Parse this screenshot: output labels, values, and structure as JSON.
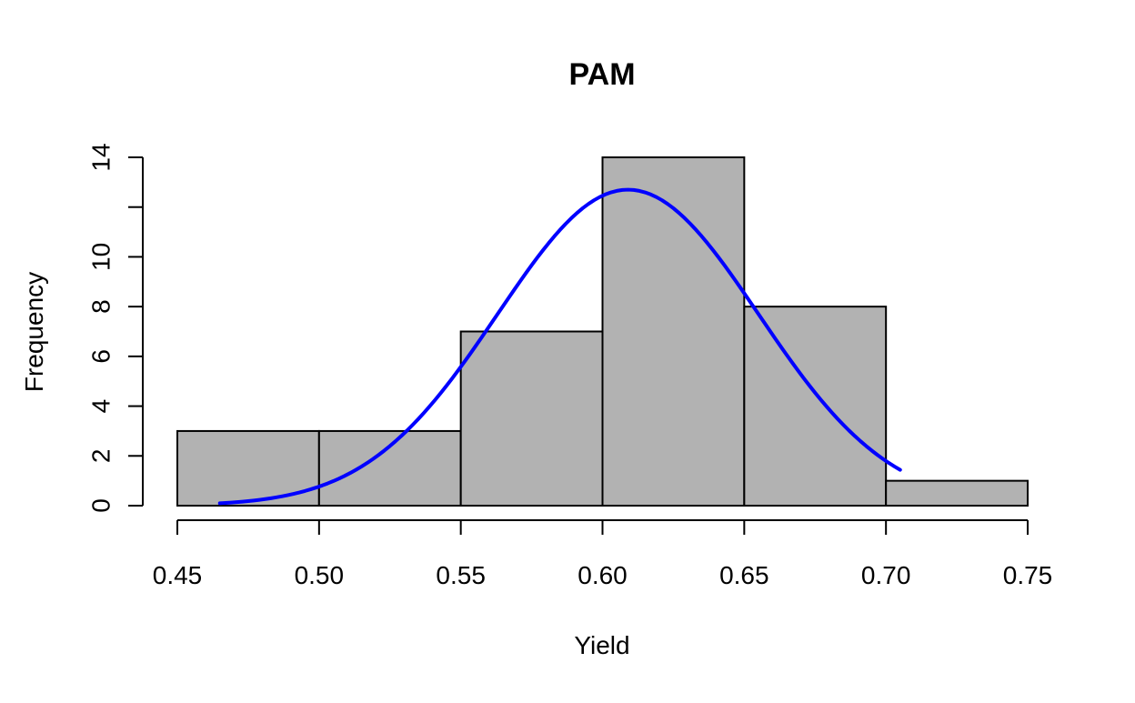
{
  "chart_data": {
    "type": "bar",
    "subtype": "histogram",
    "title": "PAM",
    "xlabel": "Yield",
    "ylabel": "Frequency",
    "bins": [
      {
        "x0": 0.45,
        "x1": 0.5,
        "count": 3
      },
      {
        "x0": 0.5,
        "x1": 0.55,
        "count": 3
      },
      {
        "x0": 0.55,
        "x1": 0.6,
        "count": 7
      },
      {
        "x0": 0.6,
        "x1": 0.65,
        "count": 14
      },
      {
        "x0": 0.65,
        "x1": 0.7,
        "count": 8
      },
      {
        "x0": 0.7,
        "x1": 0.75,
        "count": 1
      }
    ],
    "xlim": [
      0.45,
      0.75
    ],
    "ylim": [
      0,
      14
    ],
    "x_ticks": [
      0.45,
      0.5,
      0.55,
      0.6,
      0.65,
      0.7,
      0.75
    ],
    "x_tick_labels": [
      "0.45",
      "0.50",
      "0.55",
      "0.60",
      "0.65",
      "0.70",
      "0.75"
    ],
    "y_ticks": [
      0,
      2,
      4,
      6,
      8,
      10,
      12,
      14
    ],
    "y_tick_labels": [
      "0",
      "2",
      "4",
      "6",
      "8",
      "10",
      "",
      "14"
    ],
    "density_curve": {
      "type": "normal",
      "mean": 0.609,
      "sd": 0.046,
      "peak_count": 12.7,
      "x_range": [
        0.465,
        0.705
      ]
    },
    "colors": {
      "bar_fill": "#b2b2b2",
      "bar_stroke": "#000000",
      "curve": "#0000ff",
      "background": "#ffffff"
    },
    "grid": false
  }
}
